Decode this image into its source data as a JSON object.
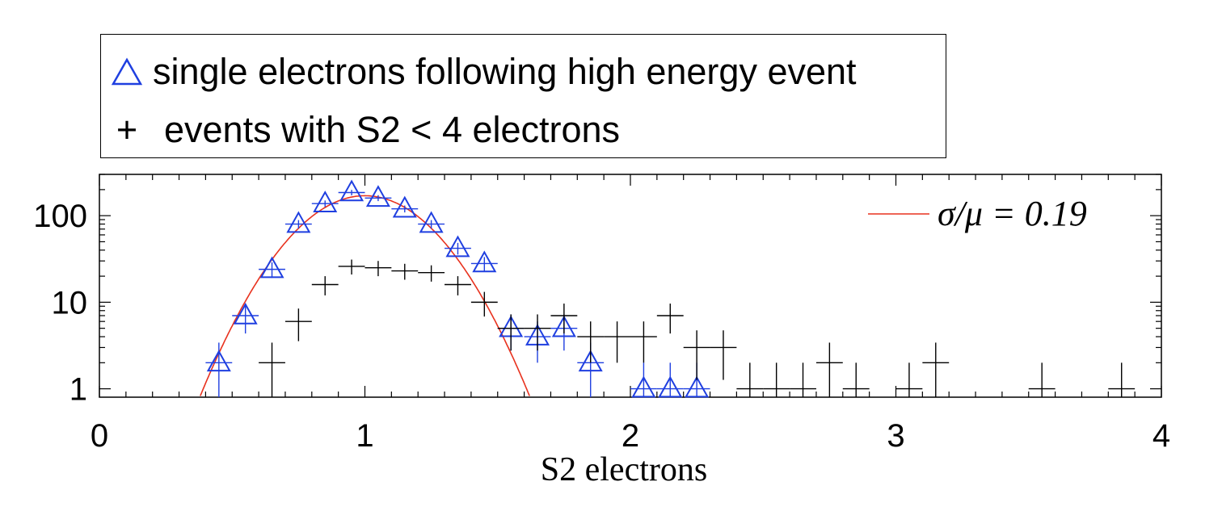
{
  "chart_data": {
    "type": "scatter",
    "xlabel": "S2 electrons",
    "ylabel": "",
    "xlim": [
      0,
      4
    ],
    "ylim": [
      0.8,
      300
    ],
    "yscale": "log",
    "x_ticks": [
      0,
      1,
      2,
      3,
      4
    ],
    "x_tick_labels": [
      "0",
      "1",
      "2",
      "3",
      "4"
    ],
    "y_ticks": [
      1,
      10,
      100
    ],
    "y_tick_labels": [
      "1",
      "10",
      "100"
    ],
    "legend_placement": "above-left",
    "series": [
      {
        "name": "single electrons following high energy event",
        "marker": "triangle",
        "color": "#1f3fe0",
        "x": [
          0.45,
          0.55,
          0.65,
          0.75,
          0.85,
          0.95,
          1.05,
          1.15,
          1.25,
          1.35,
          1.45,
          1.55,
          1.65,
          1.75,
          1.85,
          2.05,
          2.15,
          2.25
        ],
        "y": [
          2,
          7,
          24,
          80,
          138,
          185,
          160,
          120,
          80,
          42,
          28,
          5,
          4,
          5,
          2,
          1,
          1,
          1
        ]
      },
      {
        "name": "events with S2 < 4 electrons",
        "marker": "plus",
        "color": "#000000",
        "x": [
          0.65,
          0.75,
          0.85,
          0.95,
          1.05,
          1.15,
          1.25,
          1.35,
          1.45,
          1.55,
          1.65,
          1.75,
          1.85,
          1.95,
          2.05,
          2.15,
          2.25,
          2.35,
          2.45,
          2.55,
          2.65,
          2.75,
          2.85,
          3.05,
          3.15,
          3.55,
          3.85
        ],
        "y": [
          2,
          6,
          16,
          26,
          25,
          23,
          22,
          16,
          10,
          5,
          5,
          7,
          4,
          4,
          4,
          7,
          3,
          3,
          1,
          1,
          1,
          2,
          1,
          1,
          2,
          1,
          1
        ]
      }
    ],
    "fit": {
      "name": "σ/μ = 0.19",
      "color": "#e8321e",
      "mu": 1.0,
      "sigma": 0.19,
      "peak": 170
    }
  },
  "legend": {
    "series1_label": "single electrons following high energy event",
    "series2_label": "events with S2 < 4 electrons",
    "series2_symbol": "+"
  },
  "fit_label": "σ/μ = 0.19"
}
